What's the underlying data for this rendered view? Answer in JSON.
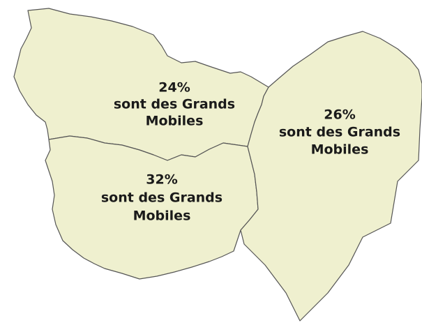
{
  "regions": [
    {
      "percent": "24%",
      "lines": [
        "sont des Grands",
        "Mobiles"
      ]
    },
    {
      "percent": "26%",
      "lines": [
        "sont des Grands",
        "Mobiles"
      ]
    },
    {
      "percent": "32%",
      "lines": [
        "sont des Grands",
        "Mobiles"
      ]
    }
  ]
}
